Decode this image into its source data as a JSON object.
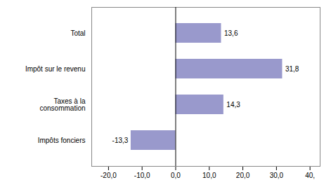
{
  "chart_data": {
    "type": "bar",
    "orientation": "horizontal",
    "categories": [
      "Impôts fonciers",
      "Taxes à la\nconsommation",
      "Impôt sur le revenu",
      "Total"
    ],
    "values": [
      -13.3,
      14.3,
      31.8,
      13.6
    ],
    "value_labels": [
      "-13,3",
      "14,3",
      "31,8",
      "13,6"
    ],
    "data_labels": true,
    "color": "#9999cc",
    "xlim": [
      -25,
      43
    ],
    "xticks": [
      {
        "value": -20.0,
        "label": "-20,0"
      },
      {
        "value": -10.0,
        "label": "-10,0"
      },
      {
        "value": 0.0,
        "label": "0,0"
      },
      {
        "value": 10.0,
        "label": "10,0"
      },
      {
        "value": 20.0,
        "label": "20,0"
      },
      {
        "value": 30.0,
        "label": "30,0"
      },
      {
        "value": 40.0,
        "label": "40,"
      }
    ],
    "grid": false
  }
}
